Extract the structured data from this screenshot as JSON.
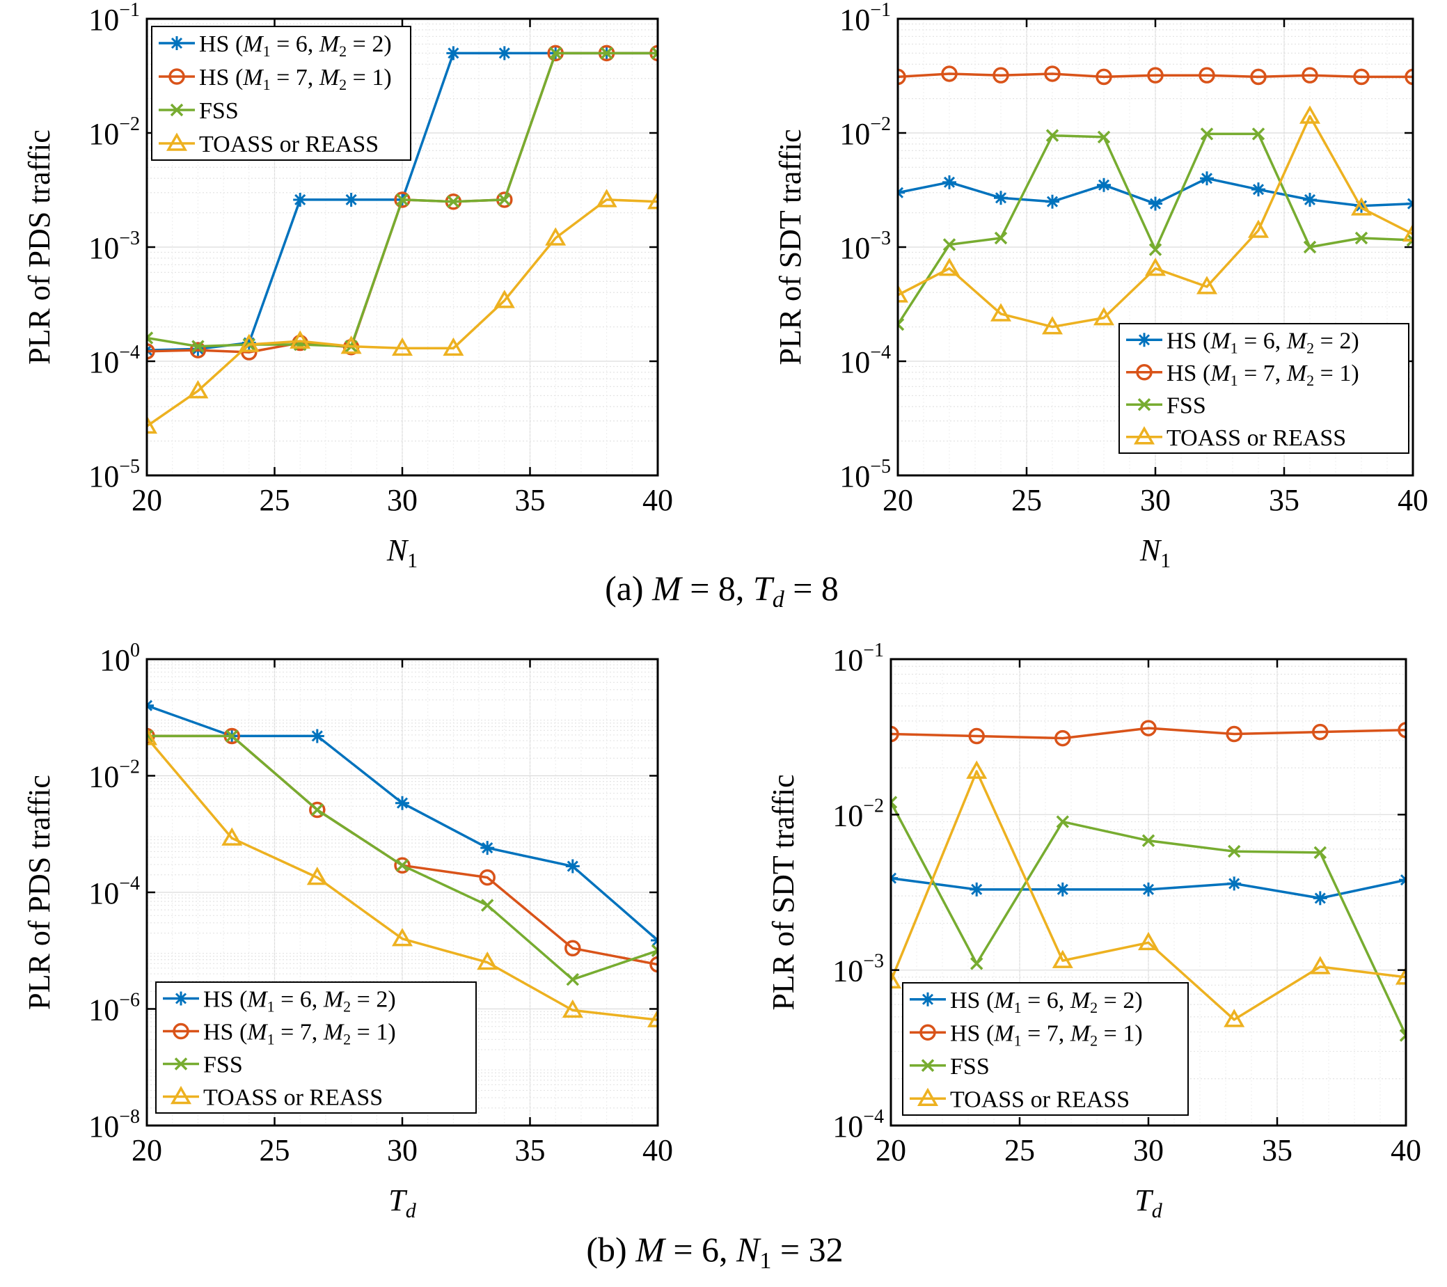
{
  "captions": [
    {
      "prefix": "(a) ",
      "M_var": "M",
      "M_eq": " = 8, ",
      "second_var": "T",
      "second_sub": "d",
      "second_eq": " = 8"
    },
    {
      "prefix": "(b) ",
      "M_var": "M",
      "M_eq": " = 6, ",
      "second_var": "N",
      "second_sub": "1",
      "second_eq": " = 32"
    }
  ],
  "legend": [
    {
      "name": "HS (M1 = 6, M2 = 2)",
      "pre": "HS (",
      "a": "M",
      "asub": "1",
      "aval": " = 6, ",
      "b": "M",
      "bsub": "2",
      "bval": " = 2)"
    },
    {
      "name": "HS (M1 = 7, M2 = 1)",
      "pre": "HS (",
      "a": "M",
      "asub": "1",
      "aval": " = 7, ",
      "b": "M",
      "bsub": "2",
      "bval": " = 1)"
    },
    {
      "name": "FSS",
      "pre": "FSS"
    },
    {
      "name": "TOASS or REASS",
      "pre": "TOASS or REASS"
    }
  ],
  "colors": {
    "hs62": "#0072BD",
    "hs71": "#D95319",
    "fss": "#77AC30",
    "toass": "#EDB120"
  },
  "chart_data": [
    {
      "type": "line",
      "panel": "a-left",
      "ylabel": "PLR of PDS traffic",
      "xlabel_var": "N",
      "xlabel_sub": "1",
      "xlim": [
        20,
        40
      ],
      "xticks": [
        20,
        25,
        30,
        35,
        40
      ],
      "yscale": "log",
      "ylim_exp": [
        -5,
        -1
      ],
      "yticks_exp": [
        -5,
        -4,
        -3,
        -2,
        -1
      ],
      "grid": true,
      "legend_position": "top-left",
      "x": [
        20,
        22,
        24,
        26,
        28,
        30,
        32,
        34,
        36,
        38,
        40
      ],
      "series": [
        {
          "name": "HS (M1 = 6, M2 = 2)",
          "values": [
            0.000125,
            0.000128,
            0.000145,
            0.0026,
            0.0026,
            0.0026,
            0.05,
            0.05,
            0.05,
            0.05,
            0.05
          ]
        },
        {
          "name": "HS (M1 = 7, M2 = 1)",
          "values": [
            0.000122,
            0.000125,
            0.00012,
            0.000145,
            0.000133,
            0.0026,
            0.0025,
            0.0026,
            0.05,
            0.05,
            0.05
          ]
        },
        {
          "name": "FSS",
          "values": [
            0.00016,
            0.000135,
            0.00014,
            0.00014,
            0.000135,
            0.0026,
            0.0025,
            0.0026,
            0.05,
            0.05,
            0.05
          ]
        },
        {
          "name": "TOASS or REASS",
          "values": [
            2.7e-05,
            5.5e-05,
            0.00014,
            0.00015,
            0.000135,
            0.00013,
            0.00013,
            0.00034,
            0.0012,
            0.0026,
            0.0025
          ]
        }
      ]
    },
    {
      "type": "line",
      "panel": "a-right",
      "ylabel": "PLR of SDT traffic",
      "xlabel_var": "N",
      "xlabel_sub": "1",
      "xlim": [
        20,
        40
      ],
      "xticks": [
        20,
        25,
        30,
        35,
        40
      ],
      "yscale": "log",
      "ylim_exp": [
        -5,
        -1
      ],
      "yticks_exp": [
        -5,
        -4,
        -3,
        -2,
        -1
      ],
      "grid": true,
      "legend_position": "bottom-right",
      "x": [
        20,
        22,
        24,
        26,
        28,
        30,
        32,
        34,
        36,
        38,
        40
      ],
      "series": [
        {
          "name": "HS (M1 = 6, M2 = 2)",
          "values": [
            0.003,
            0.0037,
            0.0027,
            0.0025,
            0.0035,
            0.0024,
            0.004,
            0.0032,
            0.0026,
            0.0023,
            0.0024
          ]
        },
        {
          "name": "HS (M1 = 7, M2 = 1)",
          "values": [
            0.031,
            0.033,
            0.032,
            0.033,
            0.031,
            0.032,
            0.032,
            0.031,
            0.032,
            0.031,
            0.031
          ]
        },
        {
          "name": "FSS",
          "values": [
            0.00021,
            0.00105,
            0.0012,
            0.0095,
            0.0092,
            0.00095,
            0.0098,
            0.0098,
            0.001,
            0.0012,
            0.00115
          ]
        },
        {
          "name": "TOASS or REASS",
          "values": [
            0.00038,
            0.00065,
            0.00026,
            0.0002,
            0.00024,
            0.00065,
            0.00045,
            0.0014,
            0.014,
            0.0022,
            0.0013
          ]
        }
      ]
    },
    {
      "type": "line",
      "panel": "b-left",
      "ylabel": "PLR of PDS traffic",
      "xlabel_var": "T",
      "xlabel_sub": "d",
      "xlim": [
        20,
        40
      ],
      "xticks": [
        20,
        25,
        30,
        35,
        40
      ],
      "yscale": "log",
      "ylim_exp": [
        -8,
        0
      ],
      "yticks_exp": [
        -8,
        -6,
        -4,
        -2,
        0
      ],
      "grid": true,
      "legend_position": "bottom-left",
      "x": [
        20,
        23.33,
        26.67,
        30,
        33.33,
        36.67,
        40
      ],
      "series": [
        {
          "name": "HS (M1 = 6, M2 = 2)",
          "values": [
            0.16,
            0.048,
            0.048,
            0.0034,
            0.00058,
            0.00028,
            1.5e-05
          ]
        },
        {
          "name": "HS (M1 = 7, M2 = 1)",
          "values": [
            0.048,
            0.048,
            0.0026,
            0.00029,
            0.00018,
            1.1e-05,
            5.8e-06
          ]
        },
        {
          "name": "FSS",
          "values": [
            0.048,
            0.048,
            0.0026,
            0.00029,
            6e-05,
            3.2e-06,
            1e-05
          ]
        },
        {
          "name": "TOASS or REASS",
          "values": [
            0.045,
            0.00085,
            0.00018,
            1.6e-05,
            6.3e-06,
            9.5e-07,
            6.5e-07
          ]
        }
      ]
    },
    {
      "type": "line",
      "panel": "b-right",
      "ylabel": "PLR of SDT traffic",
      "xlabel_var": "T",
      "xlabel_sub": "d",
      "xlim": [
        20,
        40
      ],
      "xticks": [
        20,
        25,
        30,
        35,
        40
      ],
      "yscale": "log",
      "ylim_exp": [
        -4,
        -1
      ],
      "yticks_exp": [
        -4,
        -3,
        -2,
        -1
      ],
      "grid": true,
      "legend_position": "bottom-left",
      "x": [
        20,
        23.33,
        26.67,
        30,
        33.33,
        36.67,
        40
      ],
      "series": [
        {
          "name": "HS (M1 = 6, M2 = 2)",
          "values": [
            0.0039,
            0.0033,
            0.0033,
            0.0033,
            0.0036,
            0.0029,
            0.0038
          ]
        },
        {
          "name": "HS (M1 = 7, M2 = 1)",
          "values": [
            0.033,
            0.032,
            0.031,
            0.036,
            0.033,
            0.034,
            0.035
          ]
        },
        {
          "name": "FSS",
          "values": [
            0.012,
            0.0011,
            0.009,
            0.0068,
            0.0058,
            0.0057,
            0.00038
          ]
        },
        {
          "name": "TOASS or REASS",
          "values": [
            0.00085,
            0.019,
            0.00115,
            0.0015,
            0.00048,
            0.00105,
            0.0009
          ]
        }
      ]
    }
  ]
}
